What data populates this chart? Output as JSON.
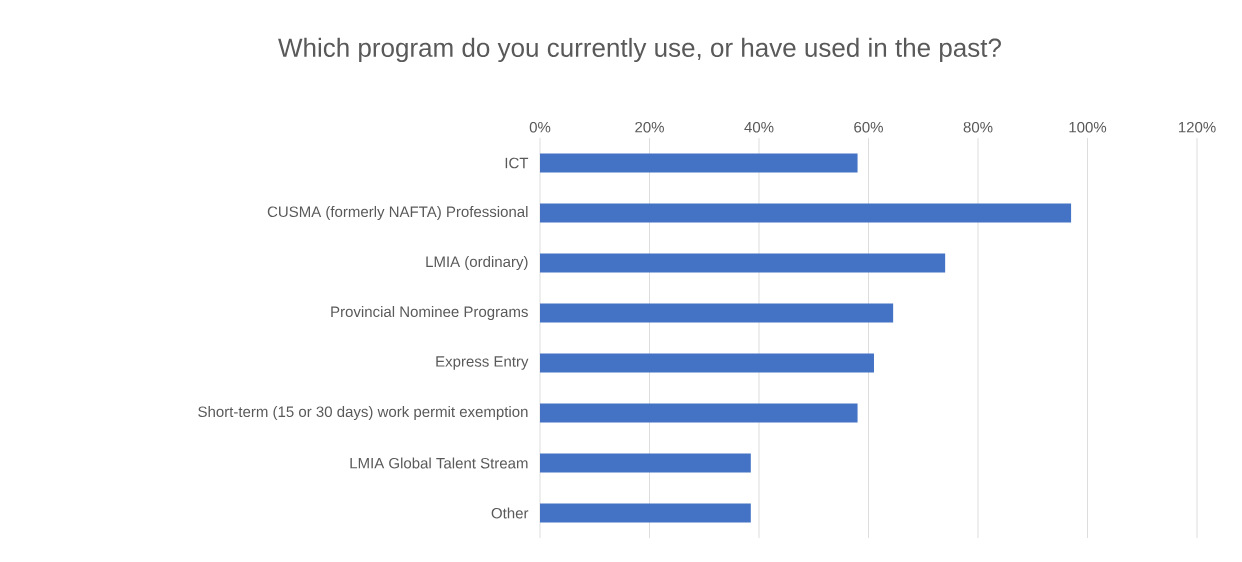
{
  "chart_data": {
    "type": "bar",
    "orientation": "horizontal",
    "title": "Which program do you currently use, or have used in the past?",
    "categories": [
      "ICT",
      "CUSMA (formerly NAFTA) Professional",
      "LMIA (ordinary)",
      "Provincial Nominee Programs",
      "Express Entry",
      "Short-term (15 or 30 days) work permit exemption",
      "LMIA Global Talent Stream",
      "Other"
    ],
    "values": [
      58,
      97,
      74,
      64.5,
      61,
      58,
      38.5,
      38.5
    ],
    "color": "#4472c4",
    "xlim": [
      0,
      120
    ],
    "xticks": [
      {
        "value": 0,
        "label": "0%"
      },
      {
        "value": 20,
        "label": "20%"
      },
      {
        "value": 40,
        "label": "40%"
      },
      {
        "value": 60,
        "label": "60%"
      },
      {
        "value": 80,
        "label": "80%"
      },
      {
        "value": 100,
        "label": "100%"
      },
      {
        "value": 120,
        "label": "120%"
      }
    ],
    "grid": "x"
  }
}
